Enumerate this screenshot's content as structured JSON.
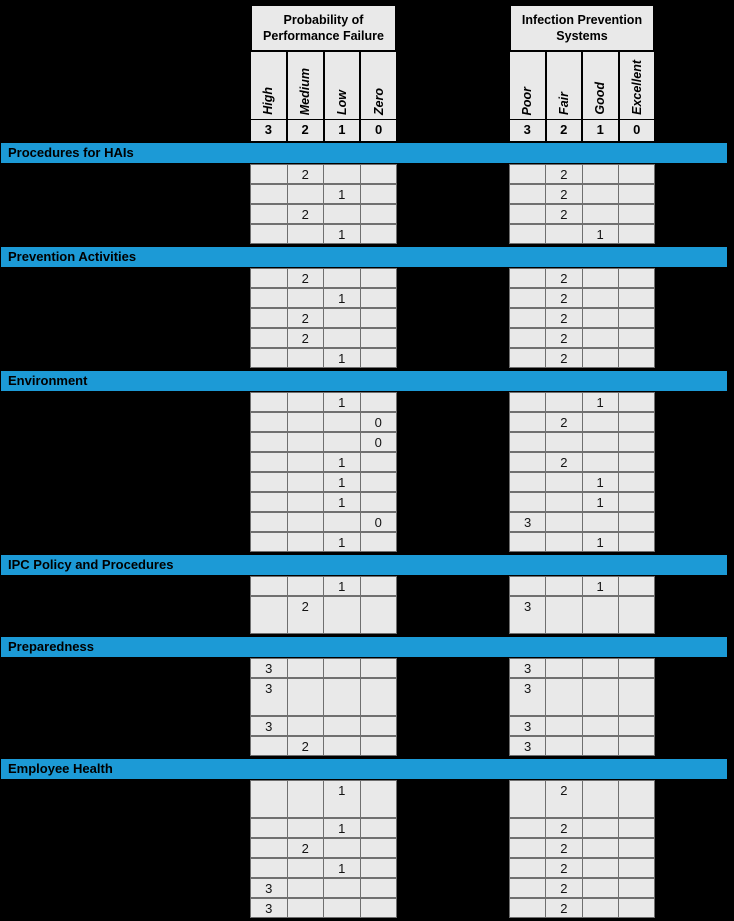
{
  "colors": {
    "section_bar": "#1c9ad6",
    "cell_bg": "#e9e9e9",
    "cell_border": "#6f6f6f",
    "page_bg": "#000000",
    "text": "#000000"
  },
  "scale_header": {
    "left": {
      "title": "Probability of\nPerformance Failure",
      "columns": [
        {
          "label": "High",
          "score": "3"
        },
        {
          "label": "Medium",
          "score": "2"
        },
        {
          "label": "Low",
          "score": "1"
        },
        {
          "label": "Zero",
          "score": "0"
        }
      ]
    },
    "right": {
      "title": "Infection Prevention\nSystems",
      "columns": [
        {
          "label": "Poor",
          "score": "3"
        },
        {
          "label": "Fair",
          "score": "2"
        },
        {
          "label": "Good",
          "score": "1"
        },
        {
          "label": "Excellent",
          "score": "0"
        }
      ]
    }
  },
  "sections": [
    {
      "title": "Procedures for HAIs",
      "rows": [
        {
          "left": [
            "",
            "2",
            "",
            ""
          ],
          "right": [
            "",
            "2",
            "",
            ""
          ]
        },
        {
          "left": [
            "",
            "",
            "1",
            ""
          ],
          "right": [
            "",
            "2",
            "",
            ""
          ]
        },
        {
          "left": [
            "",
            "2",
            "",
            ""
          ],
          "right": [
            "",
            "2",
            "",
            ""
          ]
        },
        {
          "left": [
            "",
            "",
            "1",
            ""
          ],
          "right": [
            "",
            "",
            "1",
            ""
          ]
        }
      ]
    },
    {
      "title": "Prevention Activities",
      "rows": [
        {
          "left": [
            "",
            "2",
            "",
            ""
          ],
          "right": [
            "",
            "2",
            "",
            ""
          ]
        },
        {
          "left": [
            "",
            "",
            "1",
            ""
          ],
          "right": [
            "",
            "2",
            "",
            ""
          ]
        },
        {
          "left": [
            "",
            "2",
            "",
            ""
          ],
          "right": [
            "",
            "2",
            "",
            ""
          ]
        },
        {
          "left": [
            "",
            "2",
            "",
            ""
          ],
          "right": [
            "",
            "2",
            "",
            ""
          ]
        },
        {
          "left": [
            "",
            "",
            "1",
            ""
          ],
          "right": [
            "",
            "2",
            "",
            ""
          ]
        }
      ]
    },
    {
      "title": "Environment",
      "rows": [
        {
          "left": [
            "",
            "",
            "1",
            ""
          ],
          "right": [
            "",
            "",
            "1",
            ""
          ]
        },
        {
          "left": [
            "",
            "",
            "",
            "0"
          ],
          "right": [
            "",
            "2",
            "",
            ""
          ]
        },
        {
          "left": [
            "",
            "",
            "",
            "0"
          ],
          "right": [
            "",
            "",
            "",
            ""
          ]
        },
        {
          "left": [
            "",
            "",
            "1",
            ""
          ],
          "right": [
            "",
            "2",
            "",
            ""
          ]
        },
        {
          "left": [
            "",
            "",
            "1",
            ""
          ],
          "right": [
            "",
            "",
            "1",
            ""
          ]
        },
        {
          "left": [
            "",
            "",
            "1",
            ""
          ],
          "right": [
            "",
            "",
            "1",
            ""
          ]
        },
        {
          "left": [
            "",
            "",
            "",
            "0"
          ],
          "right": [
            "3",
            "",
            "",
            ""
          ]
        },
        {
          "left": [
            "",
            "",
            "1",
            ""
          ],
          "right": [
            "",
            "",
            "1",
            ""
          ]
        }
      ]
    },
    {
      "title": "IPC Policy and Procedures",
      "rows": [
        {
          "left": [
            "",
            "",
            "1",
            ""
          ],
          "right": [
            "",
            "",
            "1",
            ""
          ]
        },
        {
          "left": [
            "",
            "2",
            "",
            ""
          ],
          "right": [
            "3",
            "",
            "",
            ""
          ],
          "tall": true
        }
      ]
    },
    {
      "title": "Preparedness",
      "rows": [
        {
          "left": [
            "3",
            "",
            "",
            ""
          ],
          "right": [
            "3",
            "",
            "",
            ""
          ]
        },
        {
          "left": [
            "3",
            "",
            "",
            ""
          ],
          "right": [
            "3",
            "",
            "",
            ""
          ],
          "tall": true
        },
        {
          "left": [
            "3",
            "",
            "",
            ""
          ],
          "right": [
            "3",
            "",
            "",
            ""
          ]
        },
        {
          "left": [
            "",
            "2",
            "",
            ""
          ],
          "right": [
            "3",
            "",
            "",
            ""
          ]
        }
      ]
    },
    {
      "title": "Employee Health",
      "rows": [
        {
          "left": [
            "",
            "",
            "1",
            ""
          ],
          "right": [
            "",
            "2",
            "",
            ""
          ],
          "tall": true
        },
        {
          "left": [
            "",
            "",
            "1",
            ""
          ],
          "right": [
            "",
            "2",
            "",
            ""
          ]
        },
        {
          "left": [
            "",
            "2",
            "",
            ""
          ],
          "right": [
            "",
            "2",
            "",
            ""
          ]
        },
        {
          "left": [
            "",
            "",
            "1",
            ""
          ],
          "right": [
            "",
            "2",
            "",
            ""
          ]
        },
        {
          "left": [
            "3",
            "",
            "",
            ""
          ],
          "right": [
            "",
            "2",
            "",
            ""
          ]
        },
        {
          "left": [
            "3",
            "",
            "",
            ""
          ],
          "right": [
            "",
            "2",
            "",
            ""
          ]
        }
      ]
    }
  ]
}
